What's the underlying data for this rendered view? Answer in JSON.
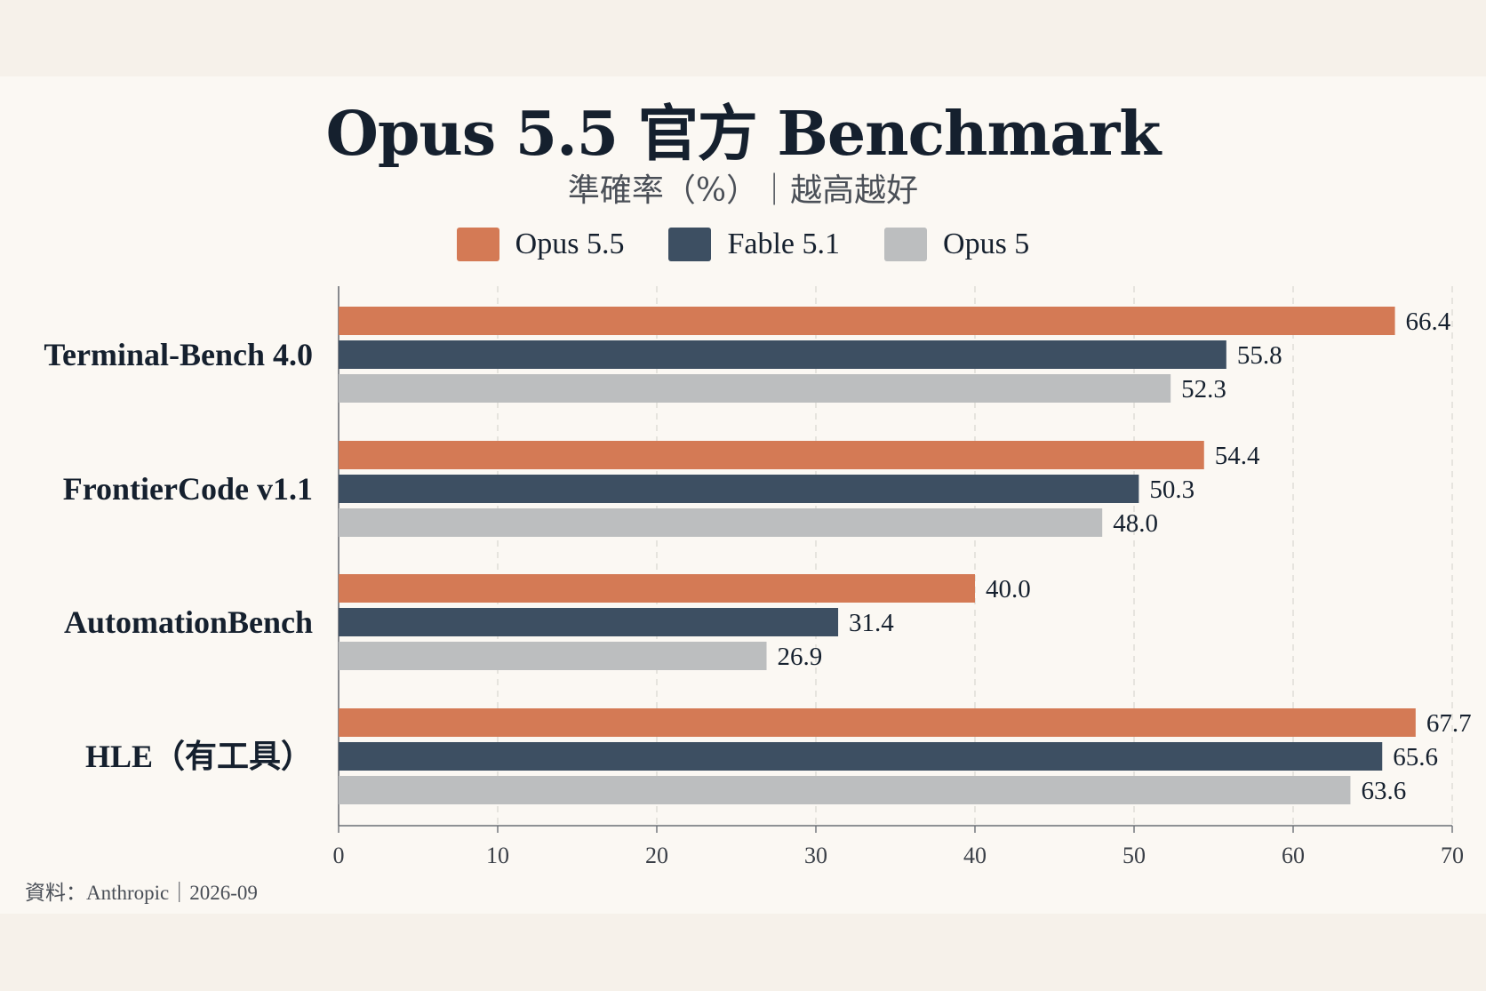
{
  "title": "Opus 5.5 官方 Benchmark",
  "subtitle": "準確率（%）｜越高越好",
  "source": "資料：Anthropic｜2026-09",
  "colors": {
    "Opus 5.5": "#d47a55",
    "Fable 5.1": "#3d4f62",
    "Opus 5": "#bcbebf"
  },
  "chart_data": {
    "type": "bar",
    "orientation": "horizontal",
    "title": "Opus 5.5 官方 Benchmark",
    "subtitle": "準確率（%）｜越高越好",
    "categories": [
      "Terminal-Bench 4.0",
      "FrontierCode v1.1",
      "AutomationBench",
      "HLE（有工具）"
    ],
    "series": [
      {
        "name": "Opus 5.5",
        "values": [
          66.4,
          54.4,
          40.0,
          67.7
        ]
      },
      {
        "name": "Fable 5.1",
        "values": [
          55.8,
          50.3,
          31.4,
          65.6
        ]
      },
      {
        "name": "Opus 5",
        "values": [
          52.3,
          48.0,
          26.9,
          63.6
        ]
      }
    ],
    "value_labels": [
      [
        "66.4",
        "55.8",
        "52.3"
      ],
      [
        "54.4",
        "50.3",
        "48.0"
      ],
      [
        "40.0",
        "31.4",
        "26.9"
      ],
      [
        "67.7",
        "65.6",
        "63.6"
      ]
    ],
    "xlim": [
      0,
      70
    ],
    "xticks": [
      "0",
      "10",
      "20",
      "30",
      "40",
      "50",
      "60",
      "70"
    ],
    "grid": true,
    "legend_position": "top-center"
  }
}
